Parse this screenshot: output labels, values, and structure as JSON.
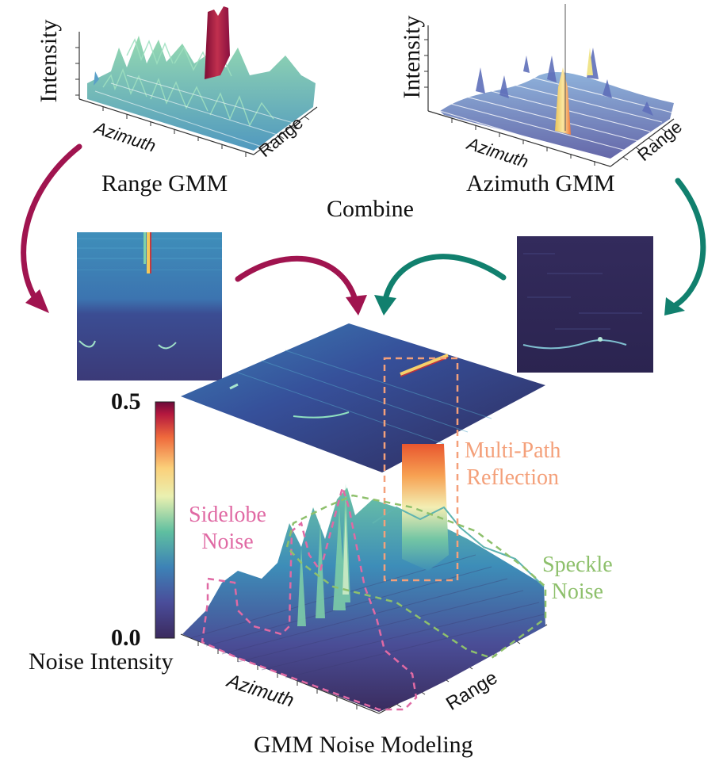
{
  "top_left": {
    "caption": "Range GMM",
    "y_label": "Intensity",
    "x_label": "Azimuth",
    "z_label": "Range"
  },
  "top_right": {
    "caption": "Azimuth GMM",
    "y_label": "Intensity",
    "x_label": "Azimuth",
    "z_label": "Range"
  },
  "combine_label": "Combine",
  "colorbar": {
    "max": "0.5",
    "min": "0.0",
    "label": "Noise Intensity"
  },
  "annotations": {
    "multipath_line1": "Multi-Path",
    "multipath_line2": "Reflection",
    "sidelobe_line1": "Sidelobe",
    "sidelobe_line2": "Noise",
    "speckle_line1": "Speckle",
    "speckle_line2": "Noise"
  },
  "bottom": {
    "x_label": "Azimuth",
    "z_label": "Range",
    "caption": "GMM Noise Modeling"
  },
  "colors": {
    "range_arrow": "#a0144f",
    "azimuth_arrow": "#11806e",
    "multipath": "#f4a07a",
    "sidelobe": "#e06aa4",
    "speckle": "#8ec06c"
  }
}
